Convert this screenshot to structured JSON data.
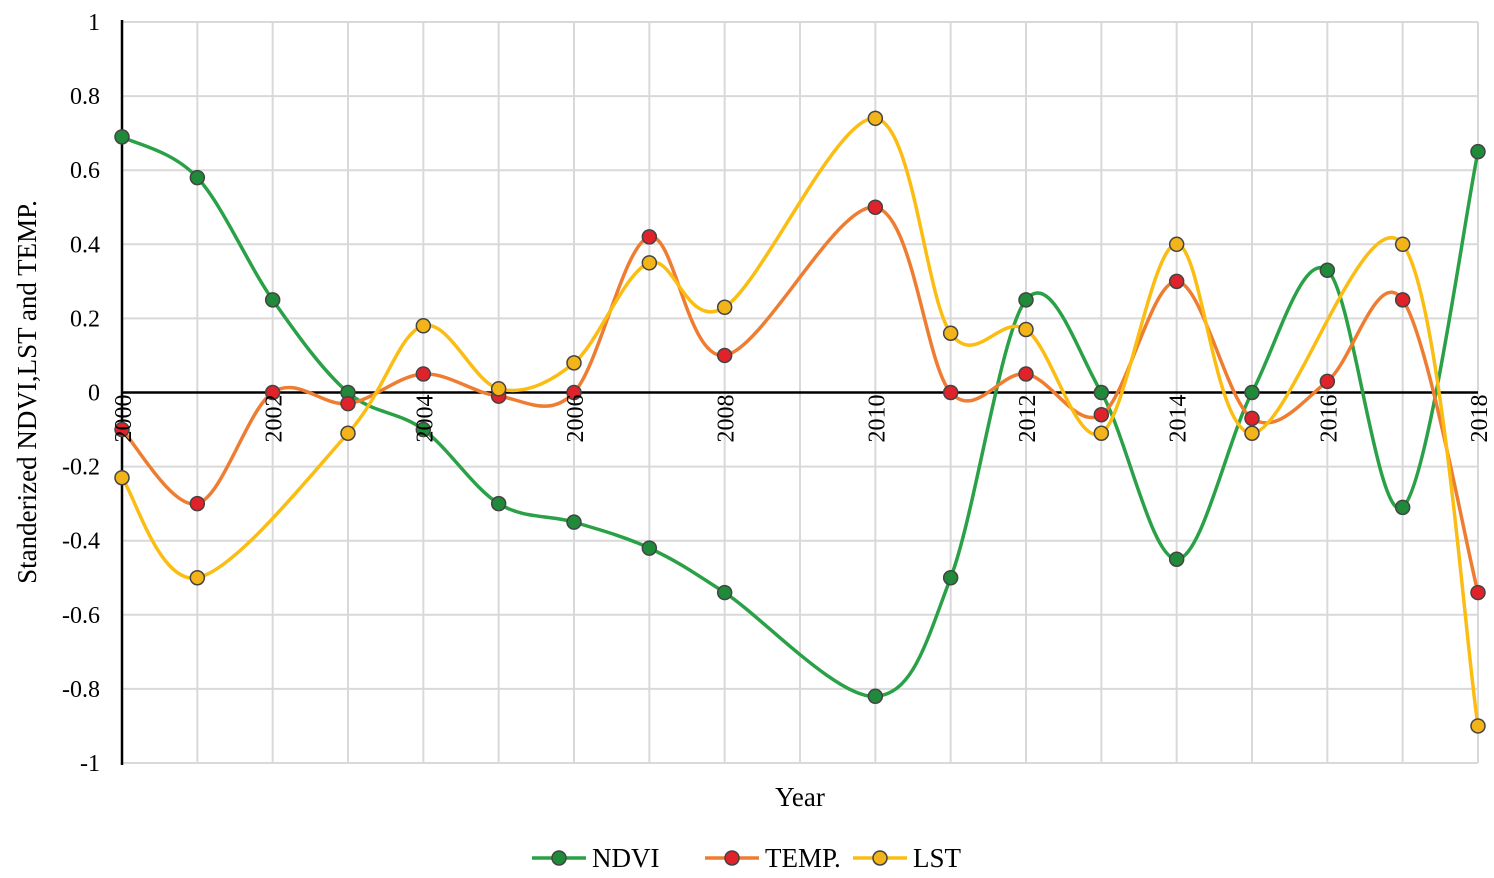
{
  "chart_data": {
    "type": "line",
    "title": "",
    "xlabel": "Year",
    "ylabel": "Standerized NDVI,LST and TEMP.",
    "ylim": [
      -1,
      1
    ],
    "yticks": [
      1,
      0.8,
      0.6,
      0.4,
      0.2,
      0,
      -0.2,
      -0.4,
      -0.6,
      -0.8,
      -1
    ],
    "ytick_labels": [
      "1",
      "0.8",
      "0.6",
      "0.4",
      "0.2",
      "0",
      "-0.2",
      "-0.4",
      "-0.6",
      "-0.8",
      "-1"
    ],
    "x": [
      2000,
      2001,
      2002,
      2003,
      2004,
      2005,
      2006,
      2007,
      2008,
      2009,
      2010,
      2011,
      2012,
      2013,
      2014,
      2015,
      2016,
      2017,
      2018
    ],
    "xtick_labels": [
      "2000",
      "2002",
      "2004",
      "2006",
      "2008",
      "2010",
      "2012",
      "2014",
      "2016",
      "2018"
    ],
    "xtick_values": [
      2000,
      2002,
      2004,
      2006,
      2008,
      2010,
      2012,
      2014,
      2016,
      2018
    ],
    "grid": true,
    "legend_position": "bottom-center",
    "series": [
      {
        "name": "NDVI",
        "color": "#2aa147",
        "marker_fill": "#1f8a3a",
        "points": [
          {
            "x": 2000,
            "y": 0.69
          },
          {
            "x": 2001,
            "y": 0.58
          },
          {
            "x": 2002,
            "y": 0.25
          },
          {
            "x": 2003,
            "y": 0.0
          },
          {
            "x": 2004,
            "y": -0.1
          },
          {
            "x": 2005,
            "y": -0.3
          },
          {
            "x": 2006,
            "y": -0.35
          },
          {
            "x": 2007,
            "y": -0.42
          },
          {
            "x": 2008,
            "y": -0.54
          },
          {
            "x": 2010,
            "y": -0.82
          },
          {
            "x": 2011,
            "y": -0.5
          },
          {
            "x": 2012,
            "y": 0.25
          },
          {
            "x": 2013,
            "y": 0.0
          },
          {
            "x": 2014,
            "y": -0.45
          },
          {
            "x": 2015,
            "y": 0.0
          },
          {
            "x": 2016,
            "y": 0.33
          },
          {
            "x": 2017,
            "y": -0.31
          },
          {
            "x": 2018,
            "y": 0.65
          }
        ]
      },
      {
        "name": "TEMP.",
        "color": "#ee7d31",
        "marker_fill": "#e0222a",
        "points": [
          {
            "x": 2000,
            "y": -0.1
          },
          {
            "x": 2001,
            "y": -0.3
          },
          {
            "x": 2002,
            "y": 0.0
          },
          {
            "x": 2003,
            "y": -0.03
          },
          {
            "x": 2004,
            "y": 0.05
          },
          {
            "x": 2005,
            "y": -0.01
          },
          {
            "x": 2006,
            "y": 0.0
          },
          {
            "x": 2007,
            "y": 0.42
          },
          {
            "x": 2008,
            "y": 0.1
          },
          {
            "x": 2010,
            "y": 0.5
          },
          {
            "x": 2011,
            "y": 0.0
          },
          {
            "x": 2012,
            "y": 0.05
          },
          {
            "x": 2013,
            "y": -0.06
          },
          {
            "x": 2014,
            "y": 0.3
          },
          {
            "x": 2015,
            "y": -0.07
          },
          {
            "x": 2016,
            "y": 0.03
          },
          {
            "x": 2017,
            "y": 0.25
          },
          {
            "x": 2018,
            "y": -0.54
          }
        ]
      },
      {
        "name": "LST",
        "color": "#fbbd12",
        "marker_fill": "#f3b41a",
        "points": [
          {
            "x": 2000,
            "y": -0.23
          },
          {
            "x": 2001,
            "y": -0.5
          },
          {
            "x": 2003,
            "y": -0.11
          },
          {
            "x": 2004,
            "y": 0.18
          },
          {
            "x": 2005,
            "y": 0.01
          },
          {
            "x": 2006,
            "y": 0.08
          },
          {
            "x": 2007,
            "y": 0.35
          },
          {
            "x": 2008,
            "y": 0.23
          },
          {
            "x": 2010,
            "y": 0.74
          },
          {
            "x": 2011,
            "y": 0.16
          },
          {
            "x": 2012,
            "y": 0.17
          },
          {
            "x": 2013,
            "y": -0.11
          },
          {
            "x": 2014,
            "y": 0.4
          },
          {
            "x": 2015,
            "y": -0.11
          },
          {
            "x": 2017,
            "y": 0.4
          },
          {
            "x": 2018,
            "y": -0.9
          }
        ]
      }
    ]
  }
}
